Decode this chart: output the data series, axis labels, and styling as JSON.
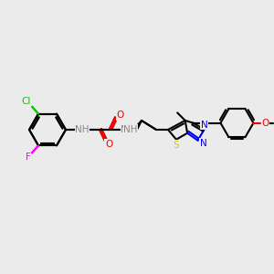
{
  "background_color": "#ebebeb",
  "colors": {
    "C": "#000000",
    "N": "#0000ee",
    "O": "#ee0000",
    "S": "#cccc00",
    "Cl": "#00cc00",
    "F": "#ff00ff",
    "NH": "#888888",
    "bond": "#000000"
  },
  "bond_lw": 1.5,
  "font_size": 7.5
}
